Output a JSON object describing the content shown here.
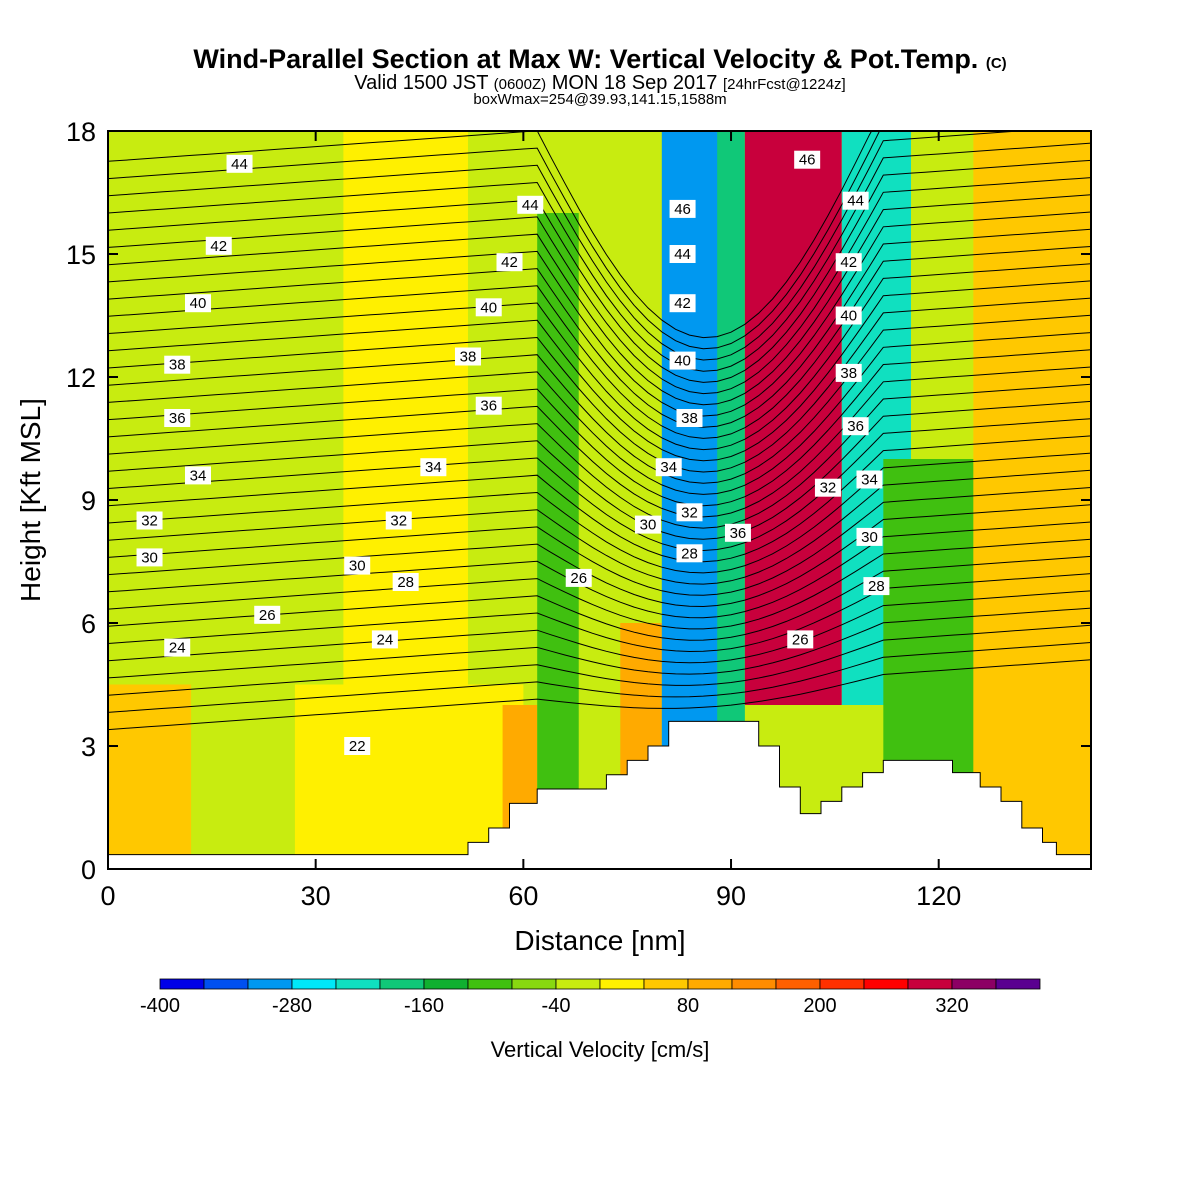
{
  "title": {
    "main": "Wind-Parallel Section at Max W: Vertical Velocity & Pot.Temp.",
    "copyright": "(C)",
    "valid_a": "Valid 1500 JST",
    "valid_b": "(0600Z)",
    "valid_c": "MON 18 Sep 2017",
    "valid_d": "[24hrFcst@1224z]",
    "box": "boxWmax=254@39.93,141.15,1588m"
  },
  "chart_data": {
    "type": "heatmap",
    "xlabel": "Distance [nm]",
    "ylabel": "Height [Kft MSL]",
    "xlim": [
      0,
      142
    ],
    "ylim": [
      0,
      18
    ],
    "x_ticks": [
      0,
      30,
      60,
      90,
      120
    ],
    "y_ticks": [
      0,
      3,
      6,
      9,
      12,
      15,
      18
    ],
    "colorbar": {
      "title": "Vertical Velocity [cm/s]",
      "levels": [
        -400,
        -360,
        -320,
        -280,
        -240,
        -200,
        -160,
        -120,
        -80,
        -40,
        0,
        40,
        80,
        120,
        160,
        200,
        240,
        280,
        320,
        360,
        400
      ],
      "labels": [
        -400,
        -280,
        -160,
        -40,
        80,
        200,
        320
      ],
      "colors": [
        "#0000e8",
        "#0050f0",
        "#0098f0",
        "#00e8f8",
        "#10e0c0",
        "#10c878",
        "#10b030",
        "#40c010",
        "#88d810",
        "#c8ec10",
        "#fff000",
        "#ffc800",
        "#ffaa00",
        "#ff8c00",
        "#ff6000",
        "#ff3000",
        "#ff0000",
        "#c8003c",
        "#8c0064",
        "#5a0090"
      ]
    },
    "velocity_bands": [
      {
        "x0": 0,
        "x1": 12,
        "y0": 0,
        "y1": 4.5,
        "w": 60
      },
      {
        "x0": 0,
        "x1": 60,
        "y0": 4.5,
        "y1": 18,
        "w": -20
      },
      {
        "x0": 27,
        "x1": 60,
        "y0": 0,
        "y1": 4.5,
        "w": 20
      },
      {
        "x0": 34,
        "x1": 52,
        "y0": 4.5,
        "y1": 18,
        "w": 10
      },
      {
        "x0": 57,
        "x1": 62,
        "y0": 1,
        "y1": 4,
        "w": 100
      },
      {
        "x0": 62,
        "x1": 68,
        "y0": 0.5,
        "y1": 16,
        "w": -100
      },
      {
        "x0": 74,
        "x1": 80,
        "y0": 0.5,
        "y1": 6,
        "w": 80
      },
      {
        "x0": 80,
        "x1": 90,
        "y0": 1,
        "y1": 18,
        "w": -300
      },
      {
        "x0": 88,
        "x1": 92,
        "y0": 0,
        "y1": 18,
        "w": -200
      },
      {
        "x0": 92,
        "x1": 106,
        "y0": 4,
        "y1": 18,
        "w": 300
      },
      {
        "x0": 106,
        "x1": 116,
        "y0": 4,
        "y1": 18,
        "w": -220
      },
      {
        "x0": 112,
        "x1": 132,
        "y0": 0,
        "y1": 10,
        "w": -120
      },
      {
        "x0": 125,
        "x1": 142,
        "y0": 0,
        "y1": 18,
        "w": 60
      }
    ],
    "terrain": {
      "x": [
        0,
        52,
        52,
        55,
        55,
        58,
        58,
        62,
        62,
        72,
        72,
        75,
        75,
        78,
        78,
        81,
        81,
        94,
        94,
        97,
        97,
        100,
        100,
        103,
        103,
        106,
        106,
        109,
        109,
        112,
        112,
        122,
        122,
        126,
        126,
        129,
        129,
        132,
        132,
        135,
        135,
        137,
        137,
        142
      ],
      "y": [
        0.35,
        0.35,
        0.65,
        0.65,
        1.0,
        1.0,
        1.6,
        1.6,
        1.95,
        1.95,
        2.3,
        2.3,
        2.65,
        2.65,
        3.0,
        3.0,
        3.6,
        3.6,
        3.0,
        3.0,
        2.0,
        2.0,
        1.35,
        1.35,
        1.65,
        1.65,
        2.0,
        2.0,
        2.35,
        2.35,
        2.65,
        2.65,
        2.35,
        2.35,
        2.0,
        2.0,
        1.65,
        1.65,
        1.0,
        1.0,
        0.65,
        0.65,
        0.35,
        0.35
      ]
    },
    "contour_labels": [
      {
        "text": "44",
        "x": 19,
        "y": 17.2
      },
      {
        "text": "44",
        "x": 61,
        "y": 16.2
      },
      {
        "text": "42",
        "x": 16,
        "y": 15.2
      },
      {
        "text": "42",
        "x": 58,
        "y": 14.8
      },
      {
        "text": "40",
        "x": 13,
        "y": 13.8
      },
      {
        "text": "40",
        "x": 55,
        "y": 13.7
      },
      {
        "text": "38",
        "x": 10,
        "y": 12.3
      },
      {
        "text": "38",
        "x": 52,
        "y": 12.5
      },
      {
        "text": "36",
        "x": 10,
        "y": 11.0
      },
      {
        "text": "36",
        "x": 55,
        "y": 11.3
      },
      {
        "text": "34",
        "x": 13,
        "y": 9.6
      },
      {
        "text": "34",
        "x": 47,
        "y": 9.8
      },
      {
        "text": "32",
        "x": 6,
        "y": 8.5
      },
      {
        "text": "32",
        "x": 42,
        "y": 8.5
      },
      {
        "text": "30",
        "x": 6,
        "y": 7.6
      },
      {
        "text": "30",
        "x": 36,
        "y": 7.4
      },
      {
        "text": "28",
        "x": 43,
        "y": 7.0
      },
      {
        "text": "26",
        "x": 68,
        "y": 7.1
      },
      {
        "text": "26",
        "x": 23,
        "y": 6.2
      },
      {
        "text": "24",
        "x": 10,
        "y": 5.4
      },
      {
        "text": "24",
        "x": 40,
        "y": 5.6
      },
      {
        "text": "22",
        "x": 36,
        "y": 3.0
      },
      {
        "text": "46",
        "x": 83,
        "y": 16.1
      },
      {
        "text": "44",
        "x": 83,
        "y": 15.0
      },
      {
        "text": "42",
        "x": 83,
        "y": 13.8
      },
      {
        "text": "40",
        "x": 83,
        "y": 12.4
      },
      {
        "text": "38",
        "x": 84,
        "y": 11.0
      },
      {
        "text": "34",
        "x": 81,
        "y": 9.8
      },
      {
        "text": "32",
        "x": 84,
        "y": 8.7
      },
      {
        "text": "30",
        "x": 78,
        "y": 8.4
      },
      {
        "text": "28",
        "x": 84,
        "y": 7.7
      },
      {
        "text": "36",
        "x": 91,
        "y": 8.2
      },
      {
        "text": "46",
        "x": 101,
        "y": 17.3
      },
      {
        "text": "44",
        "x": 108,
        "y": 16.3
      },
      {
        "text": "42",
        "x": 107,
        "y": 14.8
      },
      {
        "text": "40",
        "x": 107,
        "y": 13.5
      },
      {
        "text": "38",
        "x": 107,
        "y": 12.1
      },
      {
        "text": "36",
        "x": 108,
        "y": 10.8
      },
      {
        "text": "34",
        "x": 110,
        "y": 9.5
      },
      {
        "text": "32",
        "x": 104,
        "y": 9.3
      },
      {
        "text": "30",
        "x": 110,
        "y": 8.1
      },
      {
        "text": "28",
        "x": 111,
        "y": 6.9
      },
      {
        "text": "26",
        "x": 100,
        "y": 5.6
      }
    ]
  }
}
